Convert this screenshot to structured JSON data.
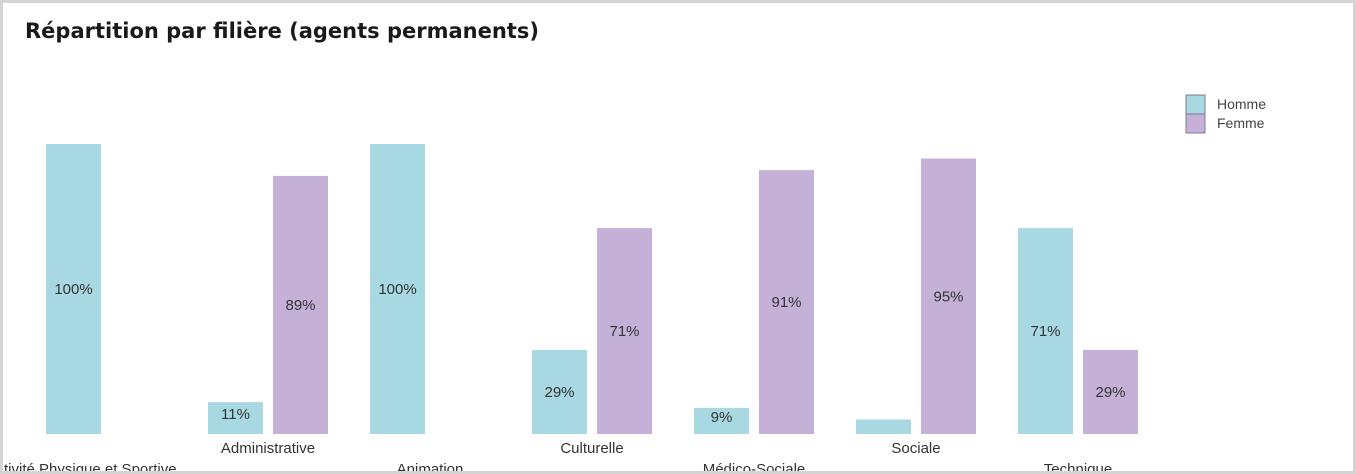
{
  "chart_data": {
    "type": "bar",
    "title": "Répartition par filière (agents permanents)",
    "categories": [
      "tivité Physique et Sportive",
      "Administrative",
      "Animation",
      "Culturelle",
      "Médico-Sociale",
      "Sociale",
      "Technique"
    ],
    "series": [
      {
        "name": "Homme",
        "color": "#a8d8e2",
        "values": [
          100,
          11,
          100,
          29,
          9,
          5,
          71
        ],
        "labels": [
          "100%",
          "11%",
          "100%",
          "29%",
          "9%",
          "",
          "71%"
        ]
      },
      {
        "name": "Femme",
        "color": "#c5b0d8",
        "values": [
          0,
          89,
          0,
          71,
          91,
          95,
          29
        ],
        "labels": [
          "",
          "89%",
          "",
          "71%",
          "91%",
          "95%",
          "29%"
        ]
      }
    ],
    "ylim": [
      0,
      100
    ],
    "grid": false,
    "legend_position": "top-right",
    "xlabel": "",
    "ylabel": ""
  }
}
